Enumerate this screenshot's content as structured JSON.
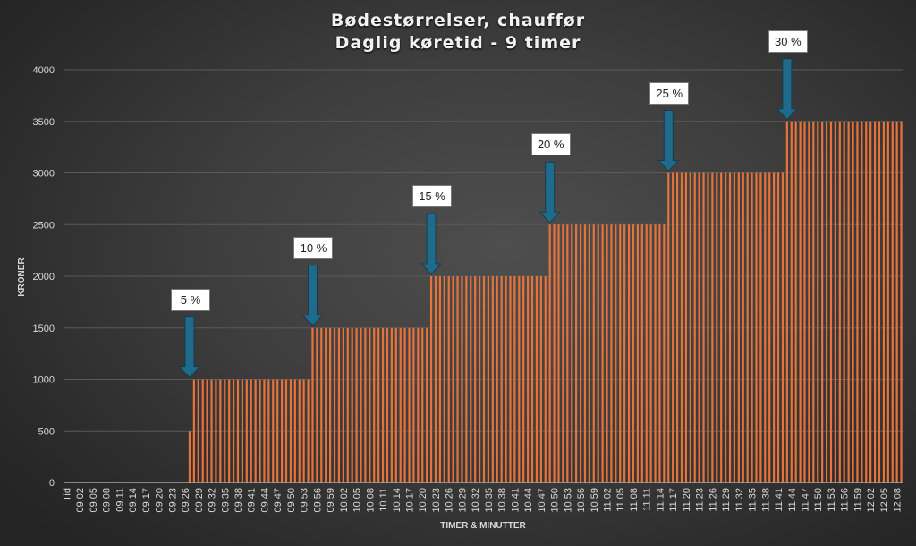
{
  "chart_data": {
    "type": "bar",
    "title": "Bødestørrelser, chauffør",
    "subtitle": "Daglig køretid - 9 timer",
    "xlabel": "TIMER & MINUTTER",
    "ylabel": "KRONER",
    "ylim": [
      0,
      4000
    ],
    "yticks": [
      0,
      500,
      1000,
      1500,
      2000,
      2500,
      3000,
      3500,
      4000
    ],
    "grid": true,
    "legend": null,
    "bar_color": "#e8733a",
    "x_tick_labels_shown": [
      "Tid",
      "09.02",
      "09.05",
      "09.08",
      "09.11",
      "09.14",
      "09.17",
      "09.20",
      "09.23",
      "09.26",
      "09.29",
      "09.32",
      "09.35",
      "09.38",
      "09.41",
      "09.44",
      "09.47",
      "09.50",
      "09.53",
      "09.56",
      "09.59",
      "10.02",
      "10.05",
      "10.08",
      "10.11",
      "10.14",
      "10.17",
      "10.20",
      "10.23",
      "10.26",
      "10.29",
      "10.32",
      "10.35",
      "10.38",
      "10.41",
      "10.44",
      "10.47",
      "10.50",
      "10.53",
      "10.56",
      "10.59",
      "11.02",
      "11.05",
      "11.08",
      "11.11",
      "11.14",
      "11.17",
      "11.20",
      "11.23",
      "11.26",
      "11.29",
      "11.32",
      "11.35",
      "11.38",
      "11.41",
      "11.44",
      "11.47",
      "11.50",
      "11.53",
      "11.56",
      "11.59",
      "12.02",
      "12.05",
      "12.08"
    ],
    "category_start": "09.00",
    "category_end": "12.09",
    "steps": [
      {
        "from": "Tid",
        "to": "09.26",
        "value": 0
      },
      {
        "from": "09.27",
        "to": "09.27",
        "value": 500
      },
      {
        "from": "09.28",
        "to": "09.54",
        "value": 1000
      },
      {
        "from": "09.55",
        "to": "10.21",
        "value": 1500
      },
      {
        "from": "10.22",
        "to": "10.48",
        "value": 2000
      },
      {
        "from": "10.49",
        "to": "11.15",
        "value": 2500
      },
      {
        "from": "11.16",
        "to": "11.42",
        "value": 3000
      },
      {
        "from": "11.43",
        "to": "12.09",
        "value": 3500
      }
    ],
    "values": [
      0,
      0,
      0,
      0,
      0,
      0,
      0,
      0,
      0,
      0,
      0,
      0,
      0,
      0,
      0,
      0,
      0,
      0,
      0,
      0,
      0,
      0,
      0,
      0,
      0,
      0,
      0,
      0,
      500,
      1000,
      1000,
      1000,
      1000,
      1000,
      1000,
      1000,
      1000,
      1000,
      1000,
      1000,
      1000,
      1000,
      1000,
      1000,
      1000,
      1000,
      1000,
      1000,
      1000,
      1000,
      1000,
      1000,
      1000,
      1000,
      1000,
      1000,
      1500,
      1500,
      1500,
      1500,
      1500,
      1500,
      1500,
      1500,
      1500,
      1500,
      1500,
      1500,
      1500,
      1500,
      1500,
      1500,
      1500,
      1500,
      1500,
      1500,
      1500,
      1500,
      1500,
      1500,
      1500,
      1500,
      1500,
      2000,
      2000,
      2000,
      2000,
      2000,
      2000,
      2000,
      2000,
      2000,
      2000,
      2000,
      2000,
      2000,
      2000,
      2000,
      2000,
      2000,
      2000,
      2000,
      2000,
      2000,
      2000,
      2000,
      2000,
      2000,
      2000,
      2000,
      2500,
      2500,
      2500,
      2500,
      2500,
      2500,
      2500,
      2500,
      2500,
      2500,
      2500,
      2500,
      2500,
      2500,
      2500,
      2500,
      2500,
      2500,
      2500,
      2500,
      2500,
      2500,
      2500,
      2500,
      2500,
      2500,
      2500,
      3000,
      3000,
      3000,
      3000,
      3000,
      3000,
      3000,
      3000,
      3000,
      3000,
      3000,
      3000,
      3000,
      3000,
      3000,
      3000,
      3000,
      3000,
      3000,
      3000,
      3000,
      3000,
      3000,
      3000,
      3000,
      3000,
      3000,
      3500,
      3500,
      3500,
      3500,
      3500,
      3500,
      3500,
      3500,
      3500,
      3500,
      3500,
      3500,
      3500,
      3500,
      3500,
      3500,
      3500,
      3500,
      3500,
      3500,
      3500,
      3500,
      3500,
      3500,
      3500,
      3500,
      3500
    ],
    "annotations": [
      {
        "label": "5 %",
        "at": "09.27",
        "value": 1000,
        "arrow_color": "#1f6b8c"
      },
      {
        "label": "10 %",
        "at": "09.55",
        "value": 1500,
        "arrow_color": "#1f6b8c"
      },
      {
        "label": "15 %",
        "at": "10.22",
        "value": 2000,
        "arrow_color": "#1f6b8c"
      },
      {
        "label": "20 %",
        "at": "10.49",
        "value": 2500,
        "arrow_color": "#1f6b8c"
      },
      {
        "label": "25 %",
        "at": "11.16",
        "value": 3000,
        "arrow_color": "#1f6b8c"
      },
      {
        "label": "30 %",
        "at": "11.43",
        "value": 3500,
        "arrow_color": "#1f6b8c"
      }
    ]
  }
}
